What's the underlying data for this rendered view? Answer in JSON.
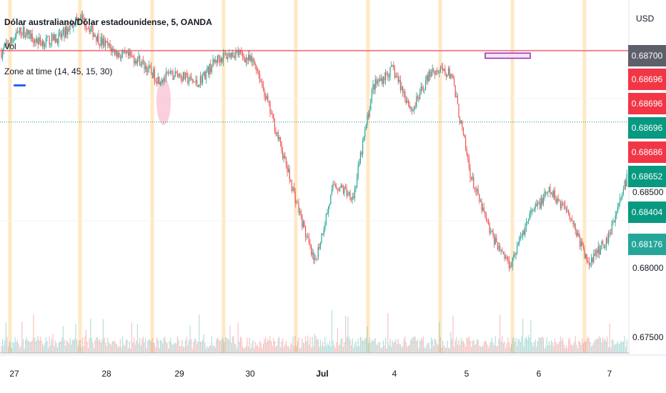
{
  "header": {
    "title": "Dólar australiano/Dólar estadounidense, 5, OANDA",
    "vol_label": "Vol",
    "indicator_label": "Zone at time (14, 45, 15, 30)"
  },
  "axis": {
    "currency": "USD",
    "labels": [
      "0.68700",
      "0.68500",
      "0.68000",
      "0.67500"
    ]
  },
  "price_tags": [
    {
      "text": "0.68700",
      "color": "#5d606b"
    },
    {
      "text": "0.68696",
      "color": "#f23645"
    },
    {
      "text": "0.68696",
      "color": "#f23645"
    },
    {
      "text": "0.68696",
      "color": "#089981"
    },
    {
      "text": "0.68686",
      "color": "#f23645"
    },
    {
      "text": "0.68652",
      "color": "#089981"
    },
    {
      "text": "0.68404",
      "color": "#089981"
    },
    {
      "text": "0.68176",
      "color": "#26a69a"
    }
  ],
  "colors": {
    "up": "#26a69a",
    "down": "#ef5350",
    "zone_band": "#ffe0b2",
    "red_line": "#f23645",
    "green_dotted_line": "#089981",
    "zone_box_border": "#9c27b0",
    "zone_box_fill": "#f3e5f5",
    "highlight": "#f8bbd0"
  },
  "chart_data": {
    "type": "candlestick",
    "title": "Dólar australiano/Dólar estadounidense, 5, OANDA",
    "x_tick_labels": [
      "27",
      "28",
      "29",
      "30",
      "Jul",
      "4",
      "5",
      "6",
      "7"
    ],
    "y_tick_labels": [
      "0.68700",
      "0.68500",
      "0.68000",
      "0.67500"
    ],
    "ylim": [
      0.6745,
      0.6888
    ],
    "price_lines": [
      {
        "value": 0.68696,
        "style": "solid",
        "color": "#f23645"
      },
      {
        "value": 0.68404,
        "style": "dotted",
        "color": "#089981"
      }
    ],
    "last_price": 0.68176,
    "close_path": [
      {
        "x": "26 Jun",
        "y": 0.6869
      },
      {
        "x": "27 Jun",
        "y": 0.6878
      },
      {
        "x": "27 Jun",
        "y": 0.6873
      },
      {
        "x": "28 Jun",
        "y": 0.6875
      },
      {
        "x": "28 Jun",
        "y": 0.6884
      },
      {
        "x": "28 Jun",
        "y": 0.6874
      },
      {
        "x": "29 Jun",
        "y": 0.6868
      },
      {
        "x": "29 Jun",
        "y": 0.6866
      },
      {
        "x": "29 Jun",
        "y": 0.6858
      },
      {
        "x": "30 Jun",
        "y": 0.686
      },
      {
        "x": "30 Jun",
        "y": 0.6856
      },
      {
        "x": "30 Jun",
        "y": 0.6866
      },
      {
        "x": "1 Jul",
        "y": 0.6869
      },
      {
        "x": "1 Jul",
        "y": 0.6864
      },
      {
        "x": "3 Jul",
        "y": 0.6838
      },
      {
        "x": "3 Jul",
        "y": 0.681
      },
      {
        "x": "3 Jul",
        "y": 0.6782
      },
      {
        "x": "4 Jul",
        "y": 0.6815
      },
      {
        "x": "4 Jul",
        "y": 0.681
      },
      {
        "x": "4 Jul",
        "y": 0.6855
      },
      {
        "x": "4 Jul",
        "y": 0.6862
      },
      {
        "x": "5 Jul",
        "y": 0.6845
      },
      {
        "x": "5 Jul",
        "y": 0.6862
      },
      {
        "x": "5 Jul",
        "y": 0.686
      },
      {
        "x": "5 Jul",
        "y": 0.6818
      },
      {
        "x": "5 Jul",
        "y": 0.6795
      },
      {
        "x": "6 Jul",
        "y": 0.6782
      },
      {
        "x": "6 Jul",
        "y": 0.6802
      },
      {
        "x": "6 Jul",
        "y": 0.6812
      },
      {
        "x": "6 Jul",
        "y": 0.6804
      },
      {
        "x": "7 Jul",
        "y": 0.6782
      },
      {
        "x": "7 Jul",
        "y": 0.6793
      },
      {
        "x": "7 Jul",
        "y": 0.6818
      }
    ],
    "zone_box": {
      "x_start": "5 Jul",
      "x_end": "6 Jul",
      "y_top": 0.68686,
      "y_bottom": 0.68665
    }
  }
}
